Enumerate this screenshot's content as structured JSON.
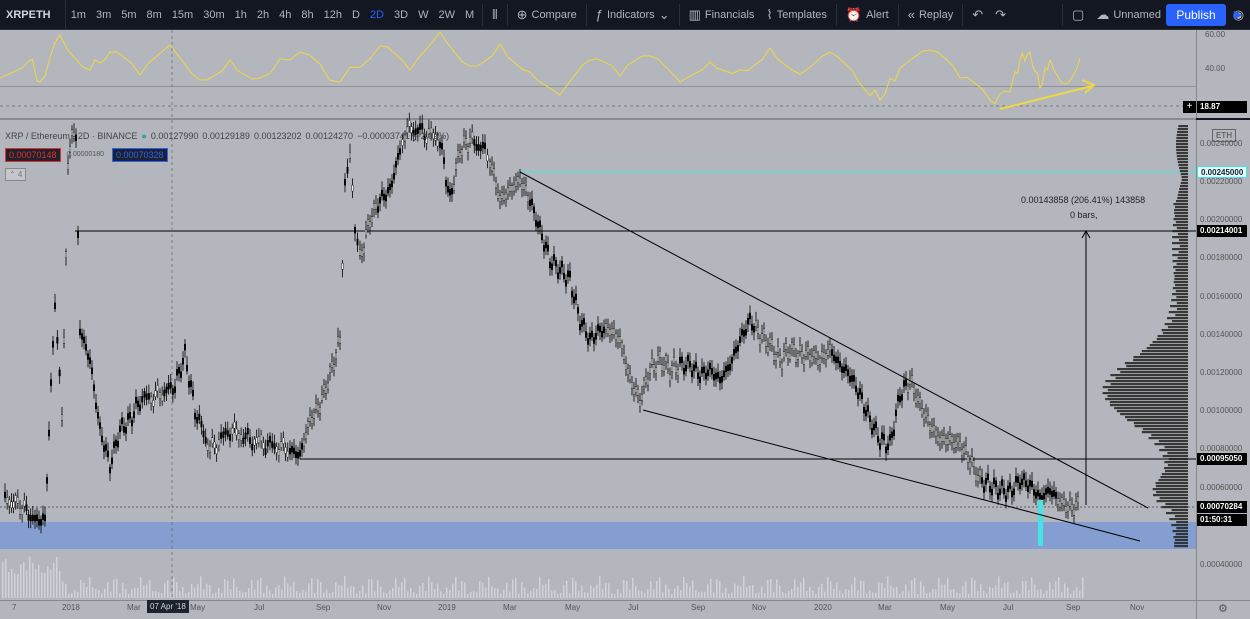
{
  "toolbar": {
    "symbol": "XRPETH",
    "intervals": [
      "1m",
      "3m",
      "5m",
      "8m",
      "15m",
      "30m",
      "1h",
      "2h",
      "4h",
      "8h",
      "12h",
      "D",
      "2D",
      "3D",
      "W",
      "2W",
      "M"
    ],
    "active_interval": "2D",
    "compare_label": "Compare",
    "indicators_label": "Indicators",
    "financials_label": "Financials",
    "templates_label": "Templates",
    "alert_label": "Alert",
    "replay_label": "Replay",
    "layout_name": "Unnamed",
    "publish_label": "Publish"
  },
  "legend": {
    "title": "XRP / Ethereum · 2D · BINANCE",
    "open": "0.00127990",
    "high": "0.00129189",
    "low": "0.00123202",
    "close": "0.00124270",
    "change": "−0.00003741 (−2.92%)",
    "bid": "0.00070148",
    "ask": "0.00070328",
    "spread": "0.00000180",
    "collapse": "⌃ 4"
  },
  "rsi": {
    "scale": [
      "60.00",
      "40.00"
    ],
    "value": "18.87",
    "plus": "+"
  },
  "price_axis": {
    "currency": "ETH",
    "ticks": [
      "0.00240000",
      "0.00220000",
      "0.00200000",
      "0.00180000",
      "0.00160000",
      "0.00140000",
      "0.00120000",
      "0.00100000",
      "0.00080000",
      "0.00060000",
      "0.00040000"
    ],
    "tags": {
      "cyan_level": "0.00245000",
      "resistance": "0.00214001",
      "support": "0.00095050",
      "last": "0.00070284",
      "countdown": "01:50:31"
    }
  },
  "measure": {
    "line1": "0.00143858 (206.41%) 143858",
    "line2": "0 bars,"
  },
  "time_axis": {
    "ticks": [
      "7",
      "2018",
      "Mar",
      "May",
      "Jul",
      "Sep",
      "Nov",
      "2019",
      "Mar",
      "May",
      "Jul",
      "Sep",
      "Nov",
      "2020",
      "Mar",
      "May",
      "Jul",
      "Sep",
      "Nov"
    ],
    "crosshair_date": "07 Apr '18"
  },
  "colors": {
    "pane_bg": "#b4b6bd",
    "toolbar_bg": "#131722",
    "accent": "#2962ff",
    "rsi_line": "#f0d840",
    "cyan": "#44e4e4",
    "zone": "#7d9ad6",
    "bid": "#e03030",
    "ask": "#2962ff"
  }
}
